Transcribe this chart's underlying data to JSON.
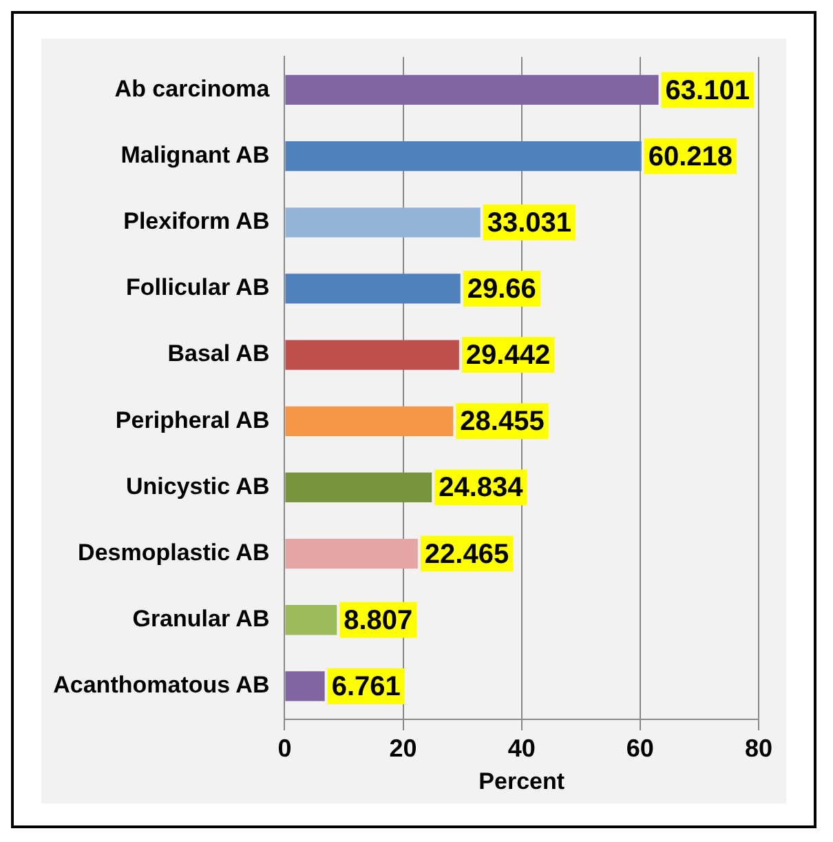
{
  "chart_data": {
    "type": "bar",
    "orientation": "horizontal",
    "xlabel": "Percent",
    "categories": [
      "Ab carcinoma",
      "Malignant AB",
      "Plexiform AB",
      "Follicular AB",
      "Basal AB",
      "Peripheral AB",
      "Unicystic AB",
      "Desmoplastic AB",
      "Granular AB",
      "Acanthomatous AB"
    ],
    "values": [
      63.101,
      60.218,
      33.031,
      29.66,
      29.442,
      28.455,
      24.834,
      22.465,
      8.807,
      6.761
    ],
    "colors": [
      "#8064a2",
      "#4f81bd",
      "#95b3d7",
      "#4f81bd",
      "#c0504d",
      "#f79646",
      "#77933c",
      "#e6a5a5",
      "#9bbb59",
      "#8064a2"
    ],
    "xlim": [
      0,
      80
    ],
    "xticks": [
      0,
      20,
      40,
      60,
      80
    ],
    "grid": "x",
    "data_labels": true,
    "legend": false
  }
}
